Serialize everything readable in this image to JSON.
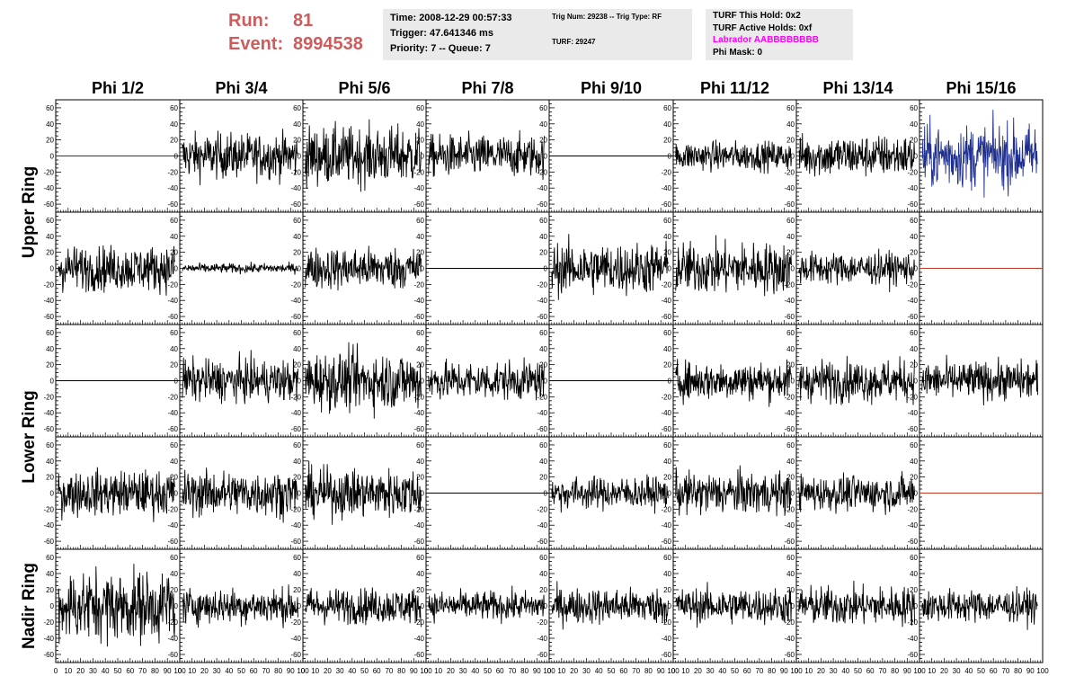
{
  "header": {
    "run_label": "Run:",
    "run_value": "81",
    "event_label": "Event:",
    "event_value": "8994538",
    "time_box": {
      "time": "Time: 2008-12-29 00:57:33",
      "trigger": "Trigger: 47.641346 ms",
      "priority": "Priority: 7 -- Queue: 7"
    },
    "trig_box": {
      "trig": "Trig Num: 29238 -- Trig Type: RF",
      "turf": "TURF: 29247"
    },
    "turf_box": {
      "hold": "TURF This Hold: 0x2",
      "active": "TURF Active Holds: 0xf",
      "labrador": "Labrador AABBBBBBBB",
      "phimask": "Phi Mask: 0"
    },
    "labrador_color": "#ff00ff",
    "run_color": "#cd5c5c"
  },
  "chart_data": {
    "type": "line",
    "columns": [
      "Phi 1/2",
      "Phi 3/4",
      "Phi 5/6",
      "Phi 7/8",
      "Phi 9/10",
      "Phi 11/12",
      "Phi 13/14",
      "Phi 15/16"
    ],
    "rows": [
      "Upper Ring",
      "Lower Ring",
      "Nadir Ring"
    ],
    "ylim": [
      -70,
      70
    ],
    "yticks": [
      -60,
      -40,
      -20,
      0,
      20,
      40,
      60
    ],
    "xlim": [
      0,
      100
    ],
    "xticks": [
      0,
      10,
      20,
      30,
      40,
      50,
      60,
      70,
      80,
      90,
      100
    ],
    "xtick_labels": [
      "0",
      "10",
      "20",
      "30",
      "40",
      "50",
      "60",
      "70",
      "80",
      "90",
      "100"
    ],
    "panel_rows": [
      [
        {
          "flat": true,
          "color": "#1f2f8f"
        },
        {
          "flat": false,
          "amp": 14,
          "color": "#000000"
        },
        {
          "flat": false,
          "amp": 18,
          "color": "#000000"
        },
        {
          "flat": false,
          "amp": 13,
          "color": "#000000"
        },
        {
          "flat": true,
          "color": "#000000"
        },
        {
          "flat": false,
          "amp": 9,
          "color": "#000000"
        },
        {
          "flat": false,
          "amp": 13,
          "color": "#000000"
        },
        {
          "flat": false,
          "amp": 20,
          "color": "#1f2f8f"
        }
      ],
      [
        {
          "flat": false,
          "amp": 14,
          "color": "#000000"
        },
        {
          "flat": false,
          "amp": 3,
          "color": "#000000"
        },
        {
          "flat": false,
          "amp": 13,
          "color": "#000000"
        },
        {
          "flat": true,
          "color": "#000000"
        },
        {
          "flat": false,
          "amp": 16,
          "color": "#000000"
        },
        {
          "flat": false,
          "amp": 16,
          "color": "#000000"
        },
        {
          "flat": false,
          "amp": 10,
          "color": "#000000"
        },
        {
          "flat": true,
          "color": "#c0392b"
        }
      ],
      [
        {
          "flat": true,
          "color": "#000000"
        },
        {
          "flat": false,
          "amp": 13,
          "color": "#000000"
        },
        {
          "flat": false,
          "amp": 18,
          "color": "#000000"
        },
        {
          "flat": false,
          "amp": 12,
          "color": "#000000"
        },
        {
          "flat": true,
          "color": "#000000"
        },
        {
          "flat": false,
          "amp": 12,
          "color": "#000000"
        },
        {
          "flat": false,
          "amp": 13,
          "color": "#000000"
        },
        {
          "flat": false,
          "amp": 12,
          "color": "#000000"
        }
      ],
      [
        {
          "flat": false,
          "amp": 14,
          "color": "#000000"
        },
        {
          "flat": false,
          "amp": 14,
          "color": "#000000"
        },
        {
          "flat": false,
          "amp": 15,
          "color": "#000000"
        },
        {
          "flat": true,
          "color": "#000000"
        },
        {
          "flat": false,
          "amp": 10,
          "color": "#000000"
        },
        {
          "flat": false,
          "amp": 13,
          "color": "#000000"
        },
        {
          "flat": false,
          "amp": 11,
          "color": "#000000"
        },
        {
          "flat": true,
          "color": "#c0392b"
        }
      ],
      [
        {
          "flat": false,
          "amp": 22,
          "color": "#000000"
        },
        {
          "flat": false,
          "amp": 11,
          "color": "#000000"
        },
        {
          "flat": false,
          "amp": 11,
          "color": "#000000"
        },
        {
          "flat": false,
          "amp": 9,
          "color": "#000000"
        },
        {
          "flat": false,
          "amp": 11,
          "color": "#000000"
        },
        {
          "flat": false,
          "amp": 11,
          "color": "#000000"
        },
        {
          "flat": false,
          "amp": 12,
          "color": "#000000"
        },
        {
          "flat": false,
          "amp": 10,
          "color": "#000000"
        }
      ]
    ]
  }
}
